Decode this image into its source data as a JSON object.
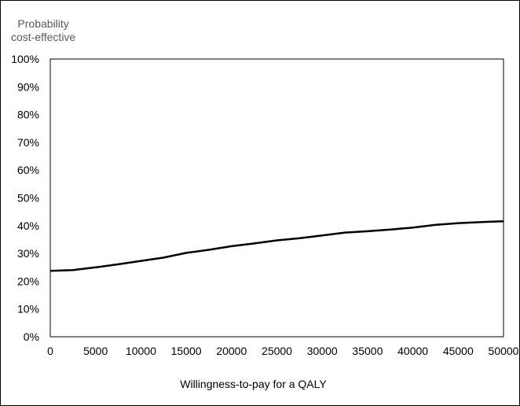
{
  "chart_data": {
    "type": "line",
    "ylabel_lines": [
      "Probability",
      "cost-effective"
    ],
    "xlabel": "Willingness-to-pay for a QALY",
    "xlim": [
      0,
      50000
    ],
    "ylim": [
      0,
      100
    ],
    "x_ticks": [
      0,
      5000,
      10000,
      15000,
      20000,
      25000,
      30000,
      35000,
      40000,
      45000,
      50000
    ],
    "y_ticks": [
      "0%",
      "10%",
      "20%",
      "30%",
      "40%",
      "50%",
      "60%",
      "70%",
      "80%",
      "90%",
      "100%"
    ],
    "grid": false,
    "series": [
      {
        "color": "#000000",
        "x": [
          0,
          2500,
          5000,
          7500,
          10000,
          12500,
          15000,
          17500,
          20000,
          22500,
          25000,
          27500,
          30000,
          32500,
          35000,
          37500,
          40000,
          42500,
          45000,
          47500,
          50000
        ],
        "y": [
          23.7,
          24.0,
          25.0,
          26.1,
          27.3,
          28.5,
          30.2,
          31.3,
          32.6,
          33.6,
          34.7,
          35.5,
          36.5,
          37.5,
          38.0,
          38.6,
          39.3,
          40.3,
          40.9,
          41.3,
          41.6
        ]
      }
    ]
  }
}
